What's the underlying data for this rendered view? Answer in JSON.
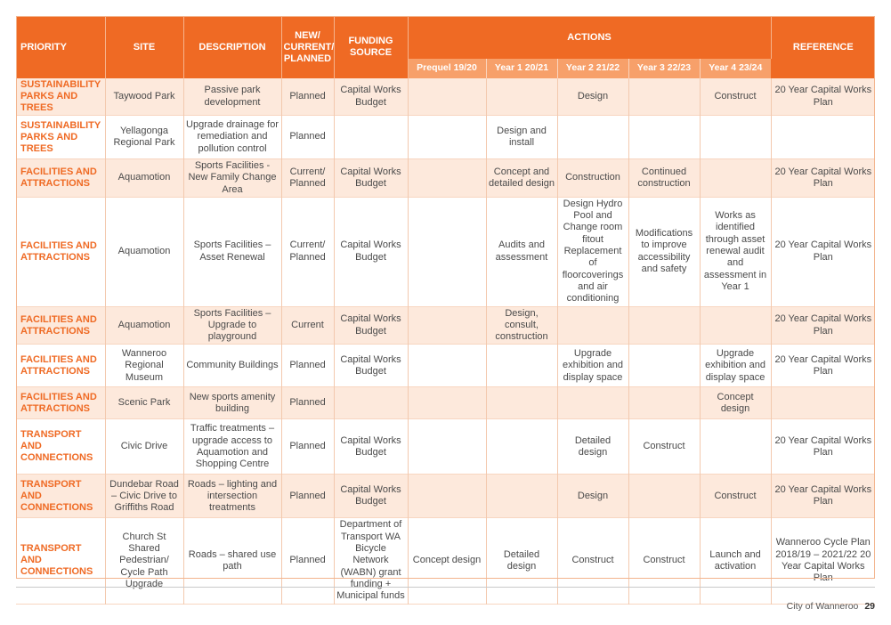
{
  "headers": {
    "priority": "PRIORITY",
    "site": "SITE",
    "description": "DESCRIPTION",
    "status": "NEW/ CURRENT/ PLANNED",
    "funding": "FUNDING SOURCE",
    "actions": "ACTIONS",
    "reference": "REFERENCE",
    "years": [
      "Prequel 19/20",
      "Year 1 20/21",
      "Year 2 21/22",
      "Year 3 22/23",
      "Year 4 23/24"
    ]
  },
  "rows": [
    {
      "priority": "SUSTAINABILITY PARKS AND TREES",
      "site": "Taywood Park",
      "description": "Passive park development",
      "status": "Planned",
      "funding": "Capital Works Budget",
      "years": [
        "",
        "",
        "Design",
        "",
        "Construct"
      ],
      "reference": "20 Year Capital Works Plan"
    },
    {
      "priority": "SUSTAINABILITY PARKS AND TREES",
      "site": "Yellagonga Regional Park",
      "description": "Upgrade drainage for remediation and pollution control",
      "status": "Planned",
      "funding": "",
      "years": [
        "",
        "Design and install",
        "",
        "",
        ""
      ],
      "reference": ""
    },
    {
      "priority": "FACILITIES AND ATTRACTIONS",
      "site": "Aquamotion",
      "description": "Sports Facilities - New Family Change Area",
      "status": "Current/ Planned",
      "funding": "Capital Works Budget",
      "years": [
        "",
        "Concept and detailed design",
        "Construction",
        "Continued construction",
        ""
      ],
      "reference": "20 Year Capital Works Plan"
    },
    {
      "priority": "FACILITIES AND ATTRACTIONS",
      "site": "Aquamotion",
      "description": "Sports Facilities – Asset Renewal",
      "status": "Current/ Planned",
      "funding": "Capital Works Budget",
      "years": [
        "",
        "Audits and assessment",
        "Design Hydro Pool and Change room fitout Replacement of floorcoverings and air conditioning",
        "Modifications to improve accessibility and safety",
        "Works as identified through asset renewal audit and assessment in Year 1"
      ],
      "reference": "20 Year Capital Works Plan"
    },
    {
      "priority": "FACILITIES AND ATTRACTIONS",
      "site": "Aquamotion",
      "description": "Sports Facilities – Upgrade to playground",
      "status": "Current",
      "funding": "Capital Works Budget",
      "years": [
        "",
        "Design, consult, construction",
        "",
        "",
        ""
      ],
      "reference": "20 Year Capital Works Plan"
    },
    {
      "priority": "FACILITIES AND ATTRACTIONS",
      "site": "Wanneroo Regional Museum",
      "description": "Community Buildings",
      "status": "Planned",
      "funding": "Capital Works Budget",
      "years": [
        "",
        "",
        "Upgrade exhibition and display space",
        "",
        "Upgrade exhibition and display space"
      ],
      "reference": "20 Year Capital Works Plan"
    },
    {
      "priority": "FACILITIES AND ATTRACTIONS",
      "site": "Scenic Park",
      "description": "New sports amenity building",
      "status": "Planned",
      "funding": "",
      "years": [
        "",
        "",
        "",
        "",
        "Concept design"
      ],
      "reference": ""
    },
    {
      "priority": "TRANSPORT AND CONNECTIONS",
      "site": "Civic Drive",
      "description": "Traffic treatments – upgrade access to Aquamotion and Shopping Centre",
      "status": "Planned",
      "funding": "Capital Works Budget",
      "years": [
        "",
        "",
        "Detailed design",
        "Construct",
        ""
      ],
      "reference": "20 Year Capital Works Plan"
    },
    {
      "priority": "TRANSPORT AND CONNECTIONS",
      "site": "Dundebar Road – Civic Drive to Griffiths Road",
      "description": "Roads – lighting and intersection treatments",
      "status": "Planned",
      "funding": "Capital Works Budget",
      "years": [
        "",
        "",
        "Design",
        "",
        "Construct"
      ],
      "reference": "20 Year Capital Works Plan"
    },
    {
      "priority": "TRANSPORT AND CONNECTIONS",
      "site": "Church St Shared Pedestrian/ Cycle Path Upgrade",
      "description": "Roads – shared use path",
      "status": "Planned",
      "funding": "Department of Transport WA Bicycle Network (WABN) grant funding + Municipal funds",
      "years": [
        "Concept design",
        "Detailed design",
        "Construct",
        "Construct",
        "Launch and activation"
      ],
      "reference": "Wanneroo Cycle Plan 2018/19 – 2021/22 20 Year Capital Works Plan"
    }
  ],
  "footer": {
    "org": "City of Wanneroo",
    "page": "29"
  }
}
